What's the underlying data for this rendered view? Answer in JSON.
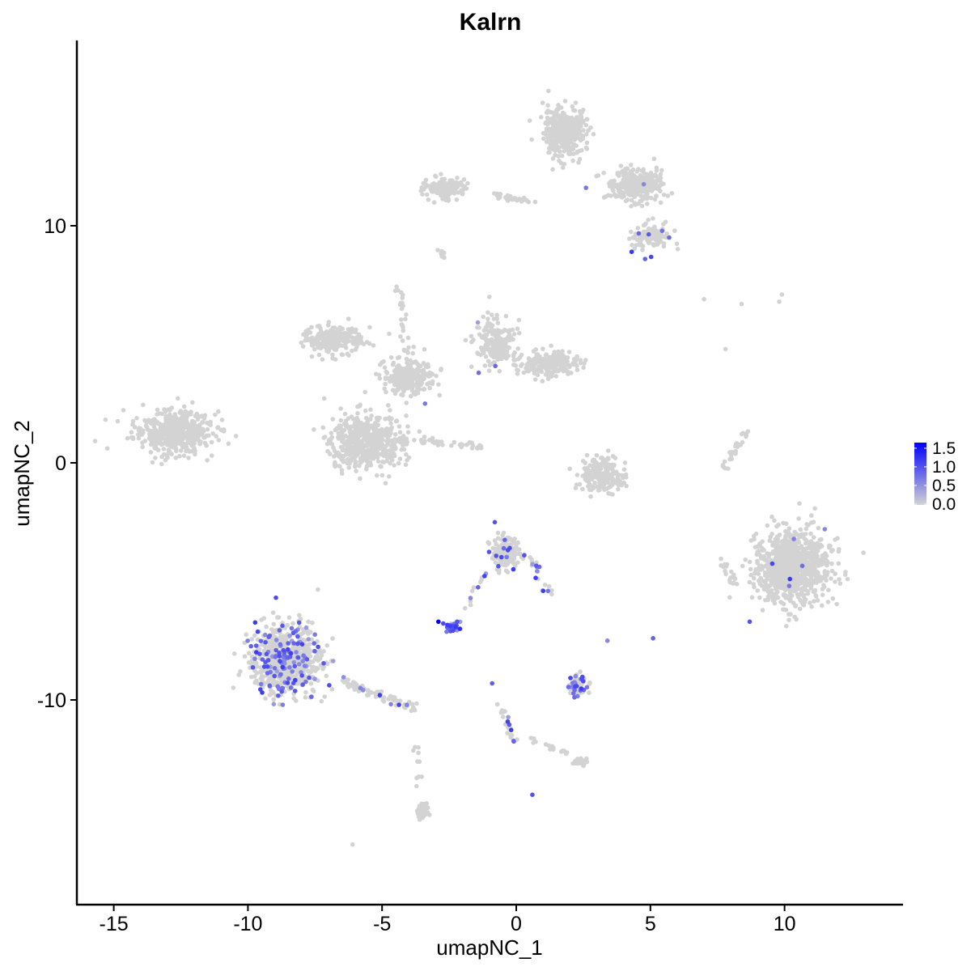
{
  "chart_data": {
    "type": "scatter",
    "title": "Kalrn",
    "xlabel": "umapNC_1",
    "ylabel": "umapNC_2",
    "xlim": [
      -16.4,
      14.4
    ],
    "ylim": [
      -18.4,
      18.0
    ],
    "xticks": [
      "-15",
      "-10",
      "-5",
      "0",
      "5",
      "10"
    ],
    "xtick_values": [
      -15,
      -10,
      -5,
      0,
      5,
      10
    ],
    "yticks": [
      "-10",
      "0",
      "10"
    ],
    "ytick_values": [
      -10,
      0,
      10
    ],
    "grid": false,
    "color_low": "#d3d3d3",
    "color_high": "#0000ff",
    "legend": {
      "position": "right",
      "labels": [
        "1.5",
        "1.0",
        "0.5",
        "0.0"
      ],
      "values": [
        1.5,
        1.0,
        0.5,
        0.0
      ],
      "max": 1.65
    },
    "clusters": [
      {
        "center": [
          -12.8,
          1.3
        ],
        "spread": [
          1.2,
          0.75
        ],
        "n": 500,
        "expr_rate": 0
      },
      {
        "center": [
          1.8,
          14.0
        ],
        "spread": [
          0.65,
          0.8
        ],
        "n": 400,
        "expr_rate": 0
      },
      {
        "center": [
          -2.6,
          11.6
        ],
        "spread": [
          0.6,
          0.35
        ],
        "n": 160,
        "expr_rate": 0
      },
      {
        "center": [
          4.5,
          11.7
        ],
        "spread": [
          0.8,
          0.55
        ],
        "n": 300,
        "expr_rate": 0.005
      },
      {
        "center": [
          5.0,
          9.6
        ],
        "spread": [
          0.6,
          0.45
        ],
        "n": 110,
        "expr_rate": 0.03
      },
      {
        "center": [
          -6.8,
          5.2
        ],
        "spread": [
          0.9,
          0.5
        ],
        "n": 220,
        "expr_rate": 0
      },
      {
        "center": [
          -4.0,
          3.6
        ],
        "spread": [
          0.8,
          0.6
        ],
        "n": 260,
        "expr_rate": 0.01
      },
      {
        "center": [
          -5.6,
          0.9
        ],
        "spread": [
          1.1,
          0.95
        ],
        "n": 520,
        "expr_rate": 0
      },
      {
        "center": [
          -0.8,
          5.0
        ],
        "spread": [
          0.6,
          0.8
        ],
        "n": 200,
        "expr_rate": 0.01
      },
      {
        "center": [
          1.2,
          4.2
        ],
        "spread": [
          0.9,
          0.45
        ],
        "n": 220,
        "expr_rate": 0
      },
      {
        "center": [
          3.2,
          -0.5
        ],
        "spread": [
          0.8,
          0.6
        ],
        "n": 200,
        "expr_rate": 0
      },
      {
        "center": [
          10.3,
          -4.4
        ],
        "spread": [
          1.15,
          1.25
        ],
        "n": 950,
        "expr_rate": 0.004
      },
      {
        "center": [
          -8.6,
          -8.3
        ],
        "spread": [
          1.05,
          1.15
        ],
        "n": 720,
        "expr_rate": 0.17
      },
      {
        "center": [
          -0.4,
          -3.8
        ],
        "spread": [
          0.45,
          0.55
        ],
        "n": 160,
        "expr_rate": 0.07
      },
      {
        "center": [
          -2.4,
          -6.9
        ],
        "spread": [
          0.25,
          0.15
        ],
        "n": 40,
        "expr_rate": 0.8
      },
      {
        "center": [
          2.3,
          -9.4
        ],
        "spread": [
          0.3,
          0.35
        ],
        "n": 80,
        "expr_rate": 0.25
      },
      {
        "center": [
          -3.5,
          -14.7
        ],
        "spread": [
          0.15,
          0.3
        ],
        "n": 40,
        "expr_rate": 0
      },
      {
        "center": [
          2.4,
          -12.6
        ],
        "spread": [
          0.25,
          0.12
        ],
        "n": 25,
        "expr_rate": 0
      }
    ],
    "trails": [
      {
        "from": [
          -0.9,
          11.3
        ],
        "to": [
          0.8,
          11.0
        ],
        "n": 30,
        "expr_rate": 0
      },
      {
        "from": [
          -4.8,
          1.0
        ],
        "to": [
          -1.2,
          0.7
        ],
        "n": 45,
        "expr_rate": 0
      },
      {
        "from": [
          -4.4,
          7.6
        ],
        "to": [
          -4.0,
          4.0
        ],
        "n": 30,
        "expr_rate": 0
      },
      {
        "from": [
          7.7,
          -0.3
        ],
        "to": [
          8.5,
          1.2
        ],
        "n": 30,
        "expr_rate": 0
      },
      {
        "from": [
          -6.5,
          -9.2
        ],
        "to": [
          -3.7,
          -10.4
        ],
        "n": 80,
        "expr_rate": 0.12
      },
      {
        "from": [
          -1.8,
          -6.0
        ],
        "to": [
          -1.2,
          -4.7
        ],
        "n": 12,
        "expr_rate": 0.5
      },
      {
        "from": [
          0.5,
          -4.0
        ],
        "to": [
          1.3,
          -5.6
        ],
        "n": 20,
        "expr_rate": 0.3
      },
      {
        "from": [
          -0.5,
          -10.3
        ],
        "to": [
          -0.1,
          -12.0
        ],
        "n": 25,
        "expr_rate": 0.3
      },
      {
        "from": [
          0.4,
          -11.6
        ],
        "to": [
          2.2,
          -12.4
        ],
        "n": 15,
        "expr_rate": 0
      },
      {
        "from": [
          -3.8,
          -11.8
        ],
        "to": [
          -3.6,
          -13.9
        ],
        "n": 10,
        "expr_rate": 0
      },
      {
        "from": [
          7.6,
          -4.0
        ],
        "to": [
          8.2,
          -5.2
        ],
        "n": 20,
        "expr_rate": 0
      },
      {
        "from": [
          -2.9,
          9.2
        ],
        "to": [
          -2.7,
          8.7
        ],
        "n": 8,
        "expr_rate": 0
      }
    ],
    "points": [
      [
        -2.9,
        -6.7,
        1.65
      ],
      [
        -2.1,
        -7.0,
        1.3
      ],
      [
        -2.2,
        -6.7,
        1.0
      ],
      [
        4.3,
        8.9,
        1.2
      ],
      [
        4.8,
        8.6,
        0.9
      ],
      [
        10.2,
        -4.9,
        1.2
      ],
      [
        8.7,
        -6.7,
        1.0
      ],
      [
        0.6,
        -14.0,
        1.0
      ],
      [
        -0.8,
        -2.5,
        1.0
      ],
      [
        0.3,
        -3.9,
        1.0
      ],
      [
        -0.9,
        -9.3,
        0.9
      ],
      [
        5.1,
        -7.4,
        0.9
      ],
      [
        3.4,
        -7.5,
        0.6
      ],
      [
        2.6,
        11.6,
        0.7
      ],
      [
        5.7,
        9.5,
        0.8
      ],
      [
        -1.4,
        3.8,
        0.8
      ],
      [
        -3.4,
        2.5,
        0.7
      ],
      [
        -1.0,
        7.0,
        0.0
      ],
      [
        7.0,
        6.9,
        0.0
      ],
      [
        8.4,
        6.7,
        0.0
      ],
      [
        9.8,
        6.8,
        0.0
      ],
      [
        9.9,
        7.1,
        0.0
      ],
      [
        7.8,
        4.8,
        0.0
      ],
      [
        -6.1,
        -16.1,
        0.0
      ],
      [
        11.5,
        -2.8,
        0.6
      ]
    ]
  }
}
